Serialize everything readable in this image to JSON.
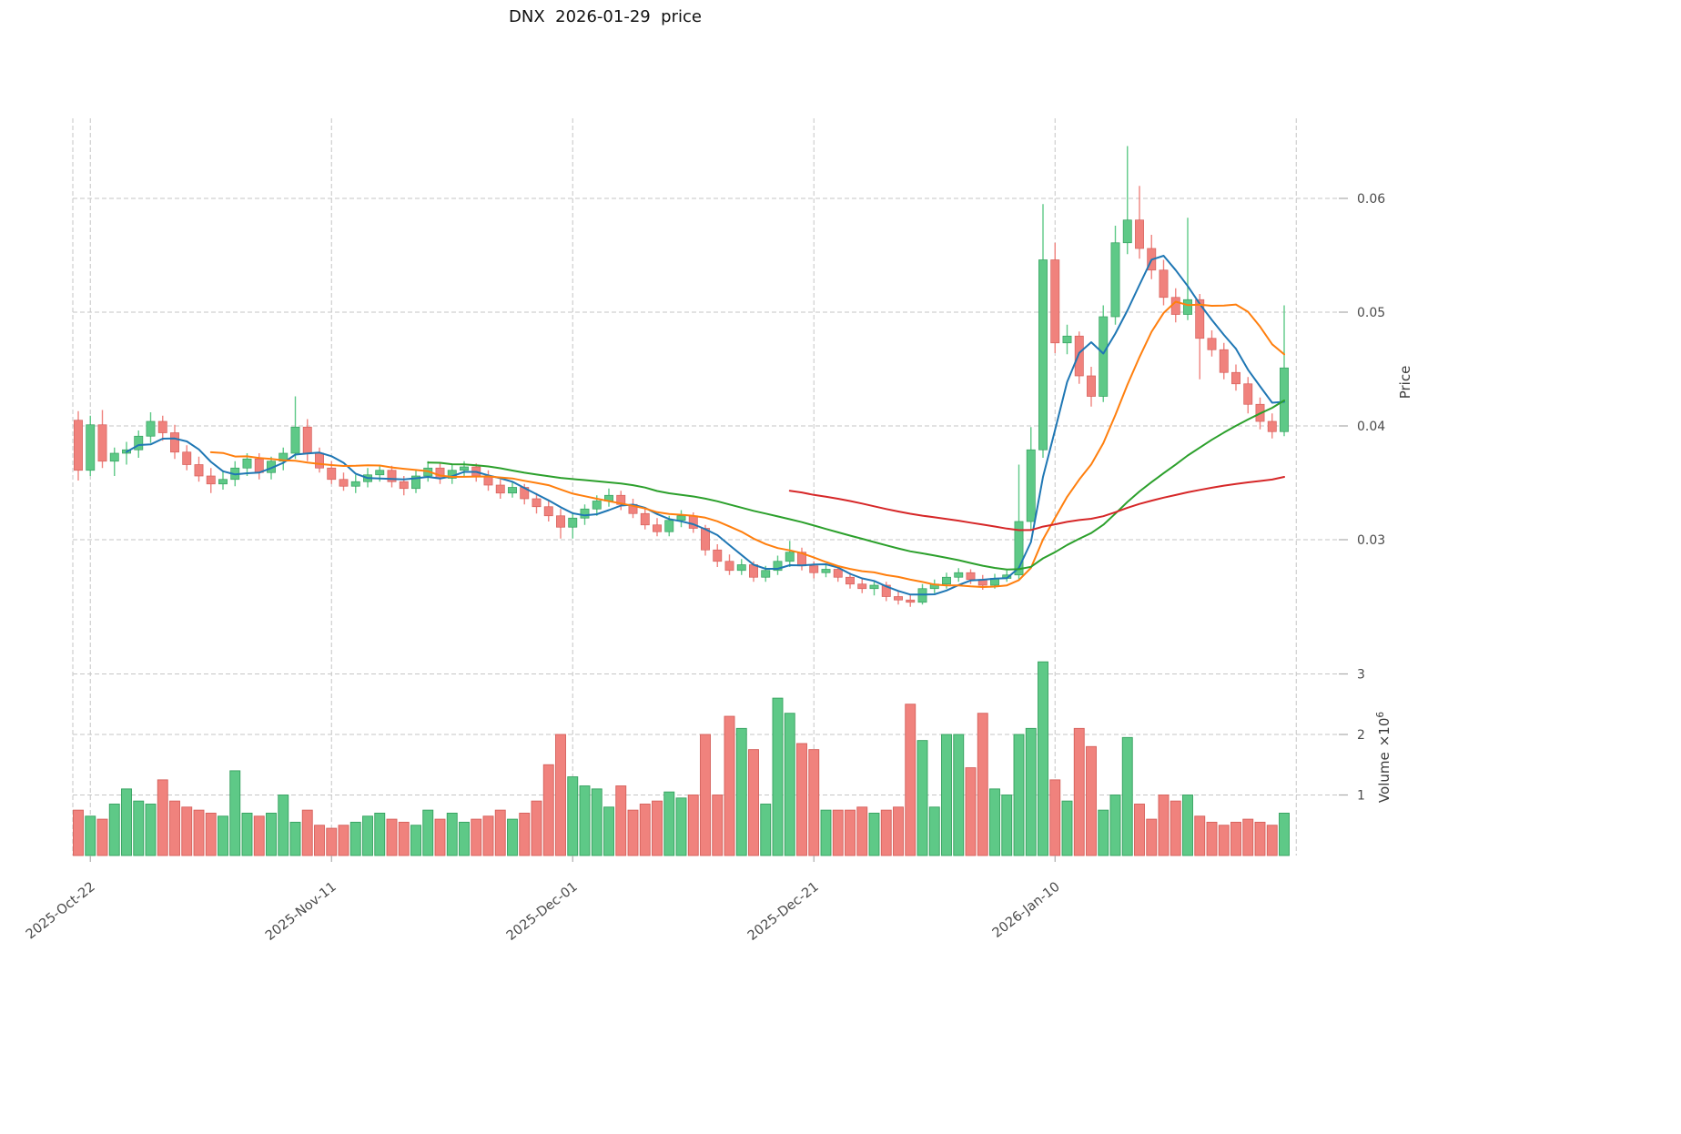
{
  "title": "DNX  2026-01-29  price",
  "axes": {
    "price_label": "Price",
    "volume_label": "Volume",
    "volume_scale_base": "×10",
    "volume_scale_exp": "6"
  },
  "style": {
    "up_color": "#5ec987",
    "down_color": "#f0827d",
    "up_edge": "#35a15f",
    "down_edge": "#d55f5a",
    "grid_color": "#c6c6c6",
    "tick_color": "#4a4a4a",
    "tick_mark_color": "#ababab",
    "axis_title_color": "#3a3a3a",
    "background": "#ffffff"
  },
  "chart_data": {
    "type": "candlestick",
    "title": "DNX  2026-01-29  price",
    "symbol": "DNX",
    "as_of": "2026-01-29",
    "ylabel_price": "Price",
    "ylabel_volume": "Volume ×10^6",
    "grid": true,
    "legend": false,
    "ylim_price": [
      0.0206,
      0.067
    ],
    "ylim_volume": [
      0,
      3.4
    ],
    "price_ticks": [
      0.03,
      0.04,
      0.05,
      0.06
    ],
    "volume_ticks_millions": [
      1,
      2,
      3
    ],
    "x_ticks": [
      {
        "index": 1,
        "label": "2025-Oct-22"
      },
      {
        "index": 21,
        "label": "2025-Nov-11"
      },
      {
        "index": 41,
        "label": "2025-Dec-01"
      },
      {
        "index": 61,
        "label": "2025-Dec-21"
      },
      {
        "index": 81,
        "label": "2026-Jan-10"
      },
      {
        "index": 101,
        "label": ""
      }
    ],
    "moving_averages": [
      {
        "name": "MA5",
        "window": 5,
        "color": "#1f77b4"
      },
      {
        "name": "MA12",
        "window": 12,
        "color": "#ff7f0e"
      },
      {
        "name": "MA30",
        "window": 30,
        "color": "#2ca02c"
      },
      {
        "name": "MA60",
        "window": 60,
        "color": "#d62728"
      }
    ],
    "dates": [
      "2025-10-21",
      "2025-10-22",
      "2025-10-23",
      "2025-10-24",
      "2025-10-25",
      "2025-10-26",
      "2025-10-27",
      "2025-10-28",
      "2025-10-29",
      "2025-10-30",
      "2025-10-31",
      "2025-11-01",
      "2025-11-02",
      "2025-11-03",
      "2025-11-04",
      "2025-11-05",
      "2025-11-06",
      "2025-11-07",
      "2025-11-08",
      "2025-11-09",
      "2025-11-10",
      "2025-11-11",
      "2025-11-12",
      "2025-11-13",
      "2025-11-14",
      "2025-11-15",
      "2025-11-16",
      "2025-11-17",
      "2025-11-18",
      "2025-11-19",
      "2025-11-20",
      "2025-11-21",
      "2025-11-22",
      "2025-11-23",
      "2025-11-24",
      "2025-11-25",
      "2025-11-26",
      "2025-11-27",
      "2025-11-28",
      "2025-11-29",
      "2025-11-30",
      "2025-12-01",
      "2025-12-02",
      "2025-12-03",
      "2025-12-04",
      "2025-12-05",
      "2025-12-06",
      "2025-12-07",
      "2025-12-08",
      "2025-12-09",
      "2025-12-10",
      "2025-12-11",
      "2025-12-12",
      "2025-12-13",
      "2025-12-14",
      "2025-12-15",
      "2025-12-16",
      "2025-12-17",
      "2025-12-18",
      "2025-12-19",
      "2025-12-20",
      "2025-12-21",
      "2025-12-22",
      "2025-12-23",
      "2025-12-24",
      "2025-12-25",
      "2025-12-26",
      "2025-12-27",
      "2025-12-28",
      "2025-12-29",
      "2025-12-30",
      "2025-12-31",
      "2026-01-01",
      "2026-01-02",
      "2026-01-03",
      "2026-01-04",
      "2026-01-05",
      "2026-01-06",
      "2026-01-07",
      "2026-01-08",
      "2026-01-09",
      "2026-01-10",
      "2026-01-11",
      "2026-01-12",
      "2026-01-13",
      "2026-01-14",
      "2026-01-15",
      "2026-01-16",
      "2026-01-17",
      "2026-01-18",
      "2026-01-19",
      "2026-01-20",
      "2026-01-21",
      "2026-01-22",
      "2026-01-23",
      "2026-01-24",
      "2026-01-25",
      "2026-01-26",
      "2026-01-27",
      "2026-01-28",
      "2026-01-29"
    ],
    "open": [
      0.0405,
      0.0361,
      0.0401,
      0.0369,
      0.0376,
      0.0379,
      0.0391,
      0.0404,
      0.0394,
      0.0377,
      0.0366,
      0.0356,
      0.0349,
      0.0353,
      0.0363,
      0.0371,
      0.0359,
      0.0369,
      0.0376,
      0.0399,
      0.0376,
      0.0363,
      0.0353,
      0.0347,
      0.0351,
      0.0357,
      0.0361,
      0.0351,
      0.0345,
      0.0356,
      0.0363,
      0.0354,
      0.0361,
      0.0364,
      0.0356,
      0.0348,
      0.0341,
      0.0346,
      0.0336,
      0.0329,
      0.0321,
      0.0311,
      0.0319,
      0.0327,
      0.0334,
      0.0339,
      0.0331,
      0.0323,
      0.0313,
      0.0307,
      0.0317,
      0.0321,
      0.031,
      0.0291,
      0.0281,
      0.0273,
      0.0278,
      0.0267,
      0.0273,
      0.0281,
      0.0289,
      0.0277,
      0.0271,
      0.0274,
      0.0267,
      0.0261,
      0.0257,
      0.026,
      0.025,
      0.0247,
      0.0245,
      0.0257,
      0.0261,
      0.0267,
      0.0271,
      0.0265,
      0.026,
      0.0266,
      0.0269,
      0.0316,
      0.0379,
      0.0546,
      0.0473,
      0.0479,
      0.0444,
      0.0426,
      0.0496,
      0.0561,
      0.0581,
      0.0556,
      0.0537,
      0.0513,
      0.0498,
      0.0511,
      0.0477,
      0.0467,
      0.0447,
      0.0437,
      0.0419,
      0.0404,
      0.0395
    ],
    "high": [
      0.0413,
      0.0409,
      0.0414,
      0.0381,
      0.0386,
      0.0396,
      0.0412,
      0.0409,
      0.0401,
      0.0383,
      0.0373,
      0.0363,
      0.0361,
      0.0369,
      0.0376,
      0.0376,
      0.0373,
      0.0381,
      0.0426,
      0.0406,
      0.0381,
      0.0369,
      0.0359,
      0.0357,
      0.0363,
      0.0366,
      0.0365,
      0.0356,
      0.0361,
      0.0369,
      0.0367,
      0.0366,
      0.0369,
      0.0367,
      0.0361,
      0.0353,
      0.0351,
      0.0349,
      0.0341,
      0.0335,
      0.0327,
      0.0323,
      0.0331,
      0.0339,
      0.0345,
      0.0343,
      0.0336,
      0.0327,
      0.0319,
      0.0321,
      0.0326,
      0.0324,
      0.0313,
      0.0296,
      0.0287,
      0.0283,
      0.0281,
      0.0277,
      0.0286,
      0.0299,
      0.0293,
      0.0281,
      0.0278,
      0.0277,
      0.0271,
      0.0266,
      0.0264,
      0.0263,
      0.0255,
      0.0252,
      0.0261,
      0.0265,
      0.0271,
      0.0275,
      0.0274,
      0.0269,
      0.027,
      0.0273,
      0.0366,
      0.0399,
      0.0595,
      0.0561,
      0.0489,
      0.0483,
      0.0452,
      0.0506,
      0.0576,
      0.0646,
      0.0611,
      0.0568,
      0.0546,
      0.0521,
      0.0583,
      0.0516,
      0.0484,
      0.0473,
      0.0454,
      0.0443,
      0.0425,
      0.0411,
      0.0506
    ],
    "low": [
      0.0352,
      0.0356,
      0.0363,
      0.0356,
      0.0366,
      0.0372,
      0.0385,
      0.0387,
      0.0371,
      0.0361,
      0.0351,
      0.0341,
      0.0344,
      0.0347,
      0.0356,
      0.0353,
      0.0353,
      0.0361,
      0.0371,
      0.0369,
      0.0359,
      0.0349,
      0.0343,
      0.0341,
      0.0346,
      0.0351,
      0.0346,
      0.0339,
      0.0341,
      0.0351,
      0.0349,
      0.0349,
      0.0355,
      0.0351,
      0.0343,
      0.0336,
      0.0337,
      0.0331,
      0.0323,
      0.0316,
      0.0301,
      0.0301,
      0.0313,
      0.0321,
      0.0329,
      0.0326,
      0.0319,
      0.0309,
      0.0303,
      0.0303,
      0.0311,
      0.0306,
      0.0286,
      0.0276,
      0.0269,
      0.0269,
      0.0263,
      0.0263,
      0.0269,
      0.0276,
      0.0273,
      0.0266,
      0.0267,
      0.0263,
      0.0257,
      0.0253,
      0.0251,
      0.0246,
      0.0243,
      0.0241,
      0.0243,
      0.0253,
      0.0257,
      0.0263,
      0.0261,
      0.0256,
      0.0257,
      0.0263,
      0.0264,
      0.0308,
      0.0372,
      0.0464,
      0.0463,
      0.0437,
      0.0417,
      0.0421,
      0.0489,
      0.0551,
      0.0547,
      0.0529,
      0.0506,
      0.0491,
      0.0493,
      0.0441,
      0.0461,
      0.0441,
      0.0431,
      0.0411,
      0.0397,
      0.0389,
      0.0391
    ],
    "close": [
      0.0361,
      0.0401,
      0.0369,
      0.0376,
      0.0379,
      0.0391,
      0.0404,
      0.0394,
      0.0377,
      0.0366,
      0.0356,
      0.0349,
      0.0353,
      0.0363,
      0.0371,
      0.0359,
      0.0369,
      0.0376,
      0.0399,
      0.0376,
      0.0363,
      0.0353,
      0.0347,
      0.0351,
      0.0357,
      0.0361,
      0.0351,
      0.0345,
      0.0356,
      0.0363,
      0.0354,
      0.0361,
      0.0364,
      0.0356,
      0.0348,
      0.0341,
      0.0346,
      0.0336,
      0.0329,
      0.0321,
      0.0311,
      0.0319,
      0.0327,
      0.0334,
      0.0339,
      0.0331,
      0.0323,
      0.0313,
      0.0307,
      0.0317,
      0.0321,
      0.031,
      0.0291,
      0.0281,
      0.0273,
      0.0278,
      0.0267,
      0.0273,
      0.0281,
      0.0289,
      0.0277,
      0.0271,
      0.0274,
      0.0267,
      0.0261,
      0.0257,
      0.026,
      0.025,
      0.0247,
      0.0245,
      0.0257,
      0.0261,
      0.0267,
      0.0271,
      0.0265,
      0.026,
      0.0266,
      0.0269,
      0.0316,
      0.0379,
      0.0546,
      0.0473,
      0.0479,
      0.0444,
      0.0426,
      0.0496,
      0.0561,
      0.0581,
      0.0556,
      0.0537,
      0.0513,
      0.0498,
      0.0511,
      0.0477,
      0.0467,
      0.0447,
      0.0437,
      0.0419,
      0.0404,
      0.0395,
      0.0451
    ],
    "volume_millions": [
      0.75,
      0.65,
      0.6,
      0.85,
      1.1,
      0.9,
      0.85,
      1.25,
      0.9,
      0.8,
      0.75,
      0.7,
      0.65,
      1.4,
      0.7,
      0.65,
      0.7,
      1.0,
      0.55,
      0.75,
      0.5,
      0.45,
      0.5,
      0.55,
      0.65,
      0.7,
      0.6,
      0.55,
      0.5,
      0.75,
      0.6,
      0.7,
      0.55,
      0.6,
      0.65,
      0.75,
      0.6,
      0.7,
      0.9,
      1.5,
      2.0,
      1.3,
      1.15,
      1.1,
      0.8,
      1.15,
      0.75,
      0.85,
      0.9,
      1.05,
      0.95,
      1.0,
      2.0,
      1.0,
      2.3,
      2.1,
      1.75,
      0.85,
      2.6,
      2.35,
      1.85,
      1.75,
      0.75,
      0.75,
      0.75,
      0.8,
      0.7,
      0.75,
      0.8,
      2.5,
      1.9,
      0.8,
      2.0,
      2.0,
      1.45,
      2.35,
      1.1,
      1.0,
      2.0,
      2.1,
      3.2,
      1.25,
      0.9,
      2.1,
      1.8,
      0.75,
      1.0,
      1.95,
      0.85,
      0.6,
      1.0,
      0.9,
      1.0,
      0.65,
      0.55,
      0.5,
      0.55,
      0.6,
      0.55,
      0.5,
      0.7
    ]
  }
}
